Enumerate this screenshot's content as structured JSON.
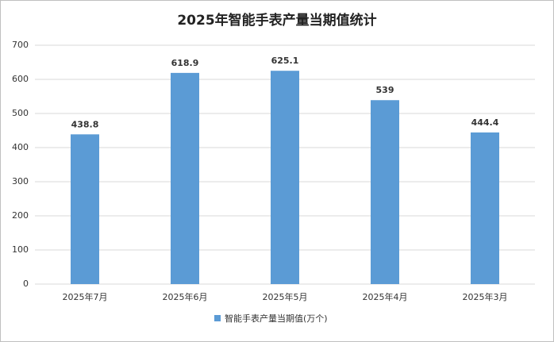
{
  "chart_data": {
    "type": "bar",
    "title": "2025年智能手表产量当期值统计",
    "categories": [
      "2025年7月",
      "2025年6月",
      "2025年5月",
      "2025年4月",
      "2025年3月"
    ],
    "series": [
      {
        "name": "智能手表产量当期值(万个)",
        "color": "#5b9bd5",
        "values": [
          438.8,
          618.9,
          625.1,
          539,
          444.4
        ]
      }
    ],
    "ylim": [
      0,
      700
    ],
    "yticks": [
      0,
      100,
      200,
      300,
      400,
      500,
      600,
      700
    ],
    "grid": true,
    "legend": "bottom"
  }
}
